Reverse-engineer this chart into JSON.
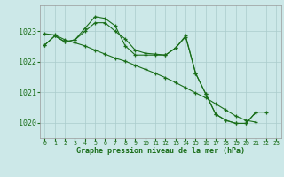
{
  "title": "Graphe pression niveau de la mer (hPa)",
  "bg_color": "#cce8e8",
  "grid_color": "#aacccc",
  "line_color": "#1a6e1a",
  "x_labels": [
    "0",
    "1",
    "2",
    "3",
    "4",
    "5",
    "6",
    "7",
    "8",
    "9",
    "10",
    "11",
    "12",
    "13",
    "14",
    "15",
    "16",
    "17",
    "18",
    "19",
    "20",
    "21",
    "22",
    "23"
  ],
  "ylim": [
    1019.5,
    1023.85
  ],
  "yticks": [
    1020,
    1021,
    1022,
    1023
  ],
  "line1_x": [
    0,
    1,
    2,
    3,
    4,
    5,
    6,
    7,
    8,
    9,
    10,
    11,
    12,
    13,
    14,
    15,
    16,
    17,
    18,
    19,
    20,
    21,
    22
  ],
  "line1_y": [
    1022.55,
    1022.85,
    1022.65,
    1022.72,
    1023.0,
    1023.28,
    1023.28,
    1023.0,
    1022.75,
    1022.38,
    1022.28,
    1022.25,
    1022.22,
    1022.45,
    1022.85,
    1021.62,
    1020.95,
    1020.28,
    1020.08,
    1019.98,
    1019.98,
    1020.35,
    1020.35
  ],
  "line2_x": [
    0,
    1,
    2,
    3,
    4,
    5,
    6,
    7,
    8,
    9,
    10,
    11,
    12,
    13,
    14,
    15,
    16,
    17,
    18,
    19,
    20,
    21
  ],
  "line2_y": [
    1022.55,
    1022.85,
    1022.65,
    1022.72,
    1023.1,
    1023.48,
    1023.42,
    1023.18,
    1022.52,
    1022.22,
    1022.22,
    1022.22,
    1022.22,
    1022.45,
    1022.82,
    1021.62,
    1020.95,
    1020.28,
    1020.08,
    1019.98,
    1019.98,
    1020.35
  ],
  "line3_x": [
    0,
    1,
    2,
    3,
    4,
    5,
    6,
    7,
    8,
    9,
    10,
    11,
    12,
    13,
    14,
    15,
    16,
    17,
    18,
    19,
    20,
    21
  ],
  "line3_y": [
    1022.92,
    1022.88,
    1022.72,
    1022.62,
    1022.52,
    1022.38,
    1022.25,
    1022.12,
    1022.02,
    1021.88,
    1021.75,
    1021.62,
    1021.48,
    1021.32,
    1021.15,
    1020.98,
    1020.82,
    1020.62,
    1020.42,
    1020.22,
    1020.08,
    1020.02
  ]
}
